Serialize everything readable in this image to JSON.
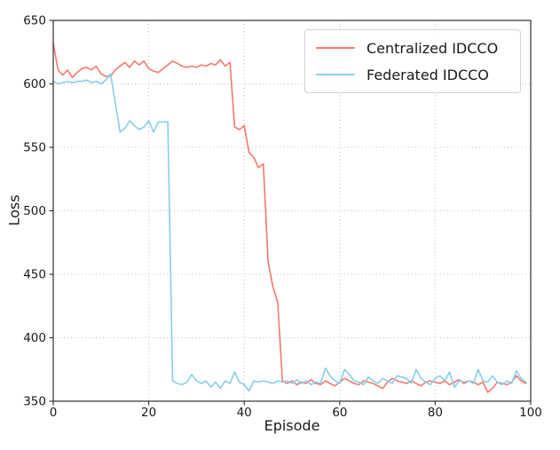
{
  "figure": {
    "background": "#ffffff",
    "text_color": "#1a1a1a",
    "grid_color": "#c2c2c2",
    "spine_color": "#2e2e2e"
  },
  "chart_data": {
    "type": "line",
    "title": "",
    "xlabel": "Episode",
    "ylabel": "Loss",
    "xlim": [
      0,
      100
    ],
    "ylim": [
      350,
      650
    ],
    "xticks": [
      0,
      20,
      40,
      60,
      80,
      100
    ],
    "yticks": [
      350,
      400,
      450,
      500,
      550,
      600,
      650
    ],
    "grid": "dotted",
    "legend_position": "upper right",
    "x": [
      0,
      1,
      2,
      3,
      4,
      5,
      6,
      7,
      8,
      9,
      10,
      11,
      12,
      13,
      14,
      15,
      16,
      17,
      18,
      19,
      20,
      21,
      22,
      23,
      24,
      25,
      26,
      27,
      28,
      29,
      30,
      31,
      32,
      33,
      34,
      35,
      36,
      37,
      38,
      39,
      40,
      41,
      42,
      43,
      44,
      45,
      46,
      47,
      48,
      49,
      50,
      51,
      52,
      53,
      54,
      55,
      56,
      57,
      58,
      59,
      60,
      61,
      62,
      63,
      64,
      65,
      66,
      67,
      68,
      69,
      70,
      71,
      72,
      73,
      74,
      75,
      76,
      77,
      78,
      79,
      80,
      81,
      82,
      83,
      84,
      85,
      86,
      87,
      88,
      89,
      90,
      91,
      92,
      93,
      94,
      95,
      96,
      97,
      98,
      99
    ],
    "series": [
      {
        "name": "Centralized IDCCO",
        "color": "#f4796b",
        "values": [
          632,
          611,
          607,
          611,
          605,
          609,
          612,
          613,
          611,
          614,
          608,
          606,
          606,
          611,
          614,
          617,
          613,
          618,
          615,
          618,
          612,
          610,
          609,
          612,
          615,
          618,
          616,
          614,
          613,
          614,
          613,
          615,
          614,
          616,
          615,
          619,
          614,
          617,
          566,
          564,
          567,
          546,
          542,
          534,
          537,
          460,
          440,
          428,
          366,
          364,
          366,
          363,
          365,
          364,
          367,
          364,
          363,
          366,
          364,
          362,
          365,
          368,
          366,
          364,
          363,
          366,
          365,
          364,
          362,
          360,
          365,
          368,
          366,
          365,
          364,
          366,
          364,
          362,
          365,
          366,
          365,
          364,
          366,
          363,
          365,
          367,
          364,
          366,
          365,
          363,
          365,
          357,
          360,
          365,
          364,
          363,
          365,
          370,
          366,
          364
        ]
      },
      {
        "name": "Federated IDCCO",
        "color": "#87ceeb",
        "values": [
          602,
          600,
          601,
          602,
          601,
          602,
          602,
          603,
          601,
          602,
          600,
          603,
          608,
          585,
          562,
          565,
          571,
          567,
          564,
          566,
          571,
          562,
          570,
          570,
          570,
          366,
          364,
          363,
          365,
          371,
          366,
          364,
          366,
          361,
          365,
          360,
          366,
          364,
          373,
          365,
          363,
          358,
          366,
          365,
          366,
          365,
          364,
          366,
          365,
          366,
          364,
          367,
          364,
          366,
          363,
          365,
          364,
          376,
          370,
          366,
          364,
          375,
          371,
          366,
          365,
          363,
          369,
          366,
          364,
          368,
          366,
          364,
          370,
          369,
          368,
          364,
          375,
          368,
          365,
          363,
          368,
          370,
          366,
          373,
          361,
          366,
          365,
          366,
          364,
          375,
          366,
          365,
          370,
          365,
          363,
          366,
          364,
          374,
          368,
          365
        ]
      }
    ]
  }
}
